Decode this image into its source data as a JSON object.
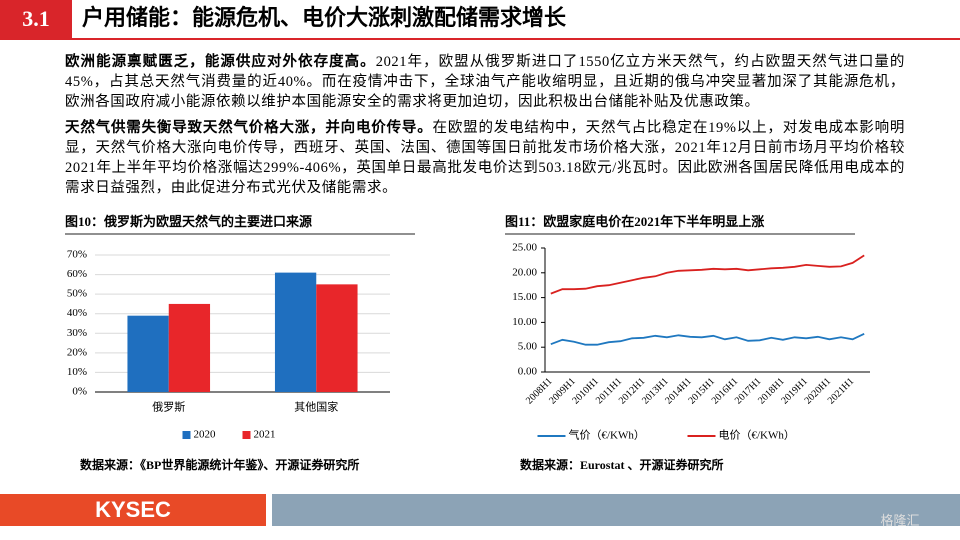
{
  "header": {
    "section": "3.1",
    "title": "户用储能：能源危机、电价大涨刺激配储需求增长"
  },
  "paragraphs": [
    {
      "lead": "欧洲能源禀赋匮乏，能源供应对外依存度高。",
      "text": "2021年，欧盟从俄罗斯进口了1550亿立方米天然气，约占欧盟天然气进口量的45%，占其总天然气消费量的近40%。而在疫情冲击下，全球油气产能收缩明显，且近期的俄乌冲突显著加深了其能源危机，欧洲各国政府减小能源依赖以维护本国能源安全的需求将更加迫切，因此积极出台储能补贴及优惠政策。"
    },
    {
      "lead": "天然气供需失衡导致天然气价格大涨，并向电价传导。",
      "text": "在欧盟的发电结构中，天然气占比稳定在19%以上，对发电成本影响明显，天然气价格大涨向电价传导，西班牙、英国、法国、德国等国日前批发市场价格大涨，2021年12月日前市场月平均价格较2021年上半年平均价格涨幅达299%-406%，英国单日最高批发电价达到503.18欧元/兆瓦时。因此欧洲各国居民降低用电成本的需求日益强烈，由此促进分布式光伏及储能需求。"
    }
  ],
  "chart_data": [
    {
      "type": "bar",
      "title": "图10：俄罗斯为欧盟天然气的主要进口来源",
      "source": "数据来源：《BP世界能源统计年鉴》、开源证券研究所",
      "categories": [
        "俄罗斯",
        "其他国家"
      ],
      "series": [
        {
          "name": "2020",
          "color": "#1f6fbf",
          "values": [
            39,
            61
          ]
        },
        {
          "name": "2021",
          "color": "#e8262a",
          "values": [
            45,
            55
          ]
        }
      ],
      "ylim": [
        0,
        70
      ],
      "yticks": [
        {
          "value": 0,
          "label": "0%"
        },
        {
          "value": 10,
          "label": "10%"
        },
        {
          "value": 20,
          "label": "20%"
        },
        {
          "value": 30,
          "label": "30%"
        },
        {
          "value": 40,
          "label": "40%"
        },
        {
          "value": 50,
          "label": "50%"
        },
        {
          "value": 60,
          "label": "60%"
        },
        {
          "value": 70,
          "label": "70%"
        }
      ],
      "legend": "bottom"
    },
    {
      "type": "line",
      "title": "图11：欧盟家庭电价在2021年下半年明显上涨",
      "source": "数据来源：Eurostat 、开源证券研究所",
      "categories": [
        "2008H1",
        null,
        "2009H1",
        null,
        "2010H1",
        null,
        "2011H1",
        null,
        "2012H1",
        null,
        "2013H1",
        null,
        "2014H1",
        null,
        "2015H1",
        null,
        "2016H1",
        null,
        "2017H1",
        null,
        "2018H1",
        null,
        "2019H1",
        null,
        "2020H1",
        null,
        "2021H1",
        null
      ],
      "series": [
        {
          "name": "气价（€/KWh）",
          "color": "#1f78c0",
          "values": [
            5.6,
            6.5,
            6.1,
            5.5,
            5.5,
            6.0,
            6.2,
            6.8,
            6.9,
            7.3,
            7.0,
            7.4,
            7.1,
            7.0,
            7.3,
            6.6,
            7.0,
            6.3,
            6.4,
            6.9,
            6.5,
            7.0,
            6.8,
            7.1,
            6.6,
            7.0,
            6.6,
            7.7
          ]
        },
        {
          "name": "电价（€/KWh）",
          "color": "#d9211f",
          "values": [
            15.8,
            16.7,
            16.7,
            16.8,
            17.3,
            17.5,
            18.0,
            18.5,
            19.0,
            19.3,
            20.0,
            20.4,
            20.5,
            20.6,
            20.8,
            20.7,
            20.8,
            20.5,
            20.7,
            20.9,
            21.0,
            21.2,
            21.6,
            21.4,
            21.2,
            21.3,
            22.0,
            23.5
          ]
        }
      ],
      "ylim": [
        0,
        25
      ],
      "yticks": [
        {
          "value": 0,
          "label": "0.00"
        },
        {
          "value": 5,
          "label": "5.00"
        },
        {
          "value": 10,
          "label": "10.00"
        },
        {
          "value": 15,
          "label": "15.00"
        },
        {
          "value": 20,
          "label": "20.00"
        },
        {
          "value": 25,
          "label": "25.00"
        }
      ],
      "legend": "bottom"
    }
  ],
  "footer": {
    "logo": "KYSEC",
    "watermark": "格隆汇"
  }
}
